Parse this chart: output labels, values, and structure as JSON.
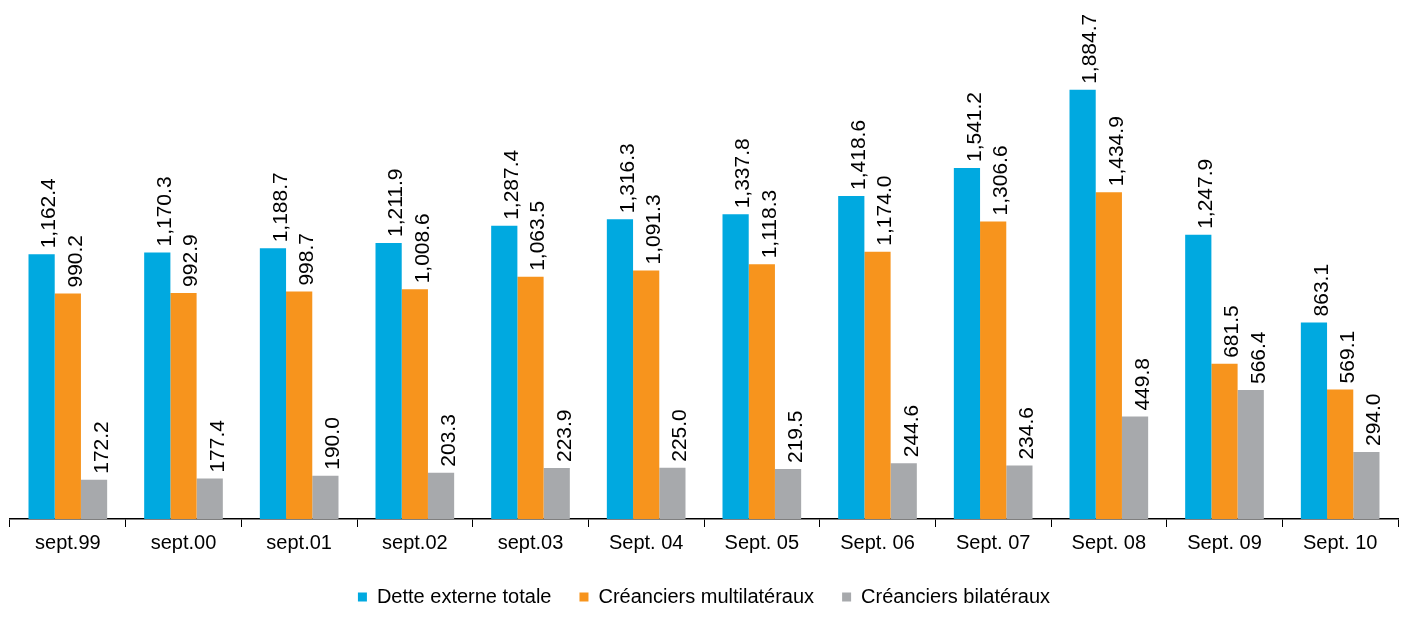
{
  "chart_data": {
    "type": "bar",
    "categories": [
      "sept.99",
      "sept.00",
      "sept.01",
      "sept.02",
      "sept.03",
      "Sept. 04",
      "Sept. 05",
      "Sept. 06",
      "Sept. 07",
      "Sept. 08",
      "Sept. 09",
      "Sept. 10"
    ],
    "series": [
      {
        "name": "Dette externe totale",
        "color": "#00a9e0",
        "values": [
          1162.4,
          1170.3,
          1188.7,
          1211.9,
          1287.4,
          1316.3,
          1337.8,
          1418.6,
          1541.2,
          1884.7,
          1247.9,
          863.1
        ],
        "value_labels": [
          "1,162.4",
          "1,170.3",
          "1,188.7",
          "1,211.9",
          "1,287.4",
          "1,316.3",
          "1,337.8",
          "1,418.6",
          "1,541.2",
          "1,884.7",
          "1,247.9",
          "863.1"
        ]
      },
      {
        "name": "Créanciers multilatéraux",
        "color": "#f7941d",
        "values": [
          990.2,
          992.9,
          998.7,
          1008.6,
          1063.5,
          1091.3,
          1118.3,
          1174.0,
          1306.6,
          1434.9,
          681.5,
          569.1
        ],
        "value_labels": [
          "990.2",
          "992.9",
          "998.7",
          "1,008.6",
          "1,063.5",
          "1,091.3",
          "1,118.3",
          "1,174.0",
          "1,306.6",
          "1,434.9",
          "681.5",
          "569.1"
        ]
      },
      {
        "name": "Créanciers bilatéraux",
        "color": "#a7a9ac",
        "values": [
          172.2,
          177.4,
          190.0,
          203.3,
          223.9,
          225.0,
          219.5,
          244.6,
          234.6,
          449.8,
          566.4,
          294.0
        ],
        "value_labels": [
          "172.2",
          "177.4",
          "190.0",
          "203.3",
          "223.9",
          "225.0",
          "219.5",
          "244.6",
          "234.6",
          "449.8",
          "566.4",
          "294.0"
        ]
      }
    ],
    "legend": "bottom",
    "grid": false
  }
}
